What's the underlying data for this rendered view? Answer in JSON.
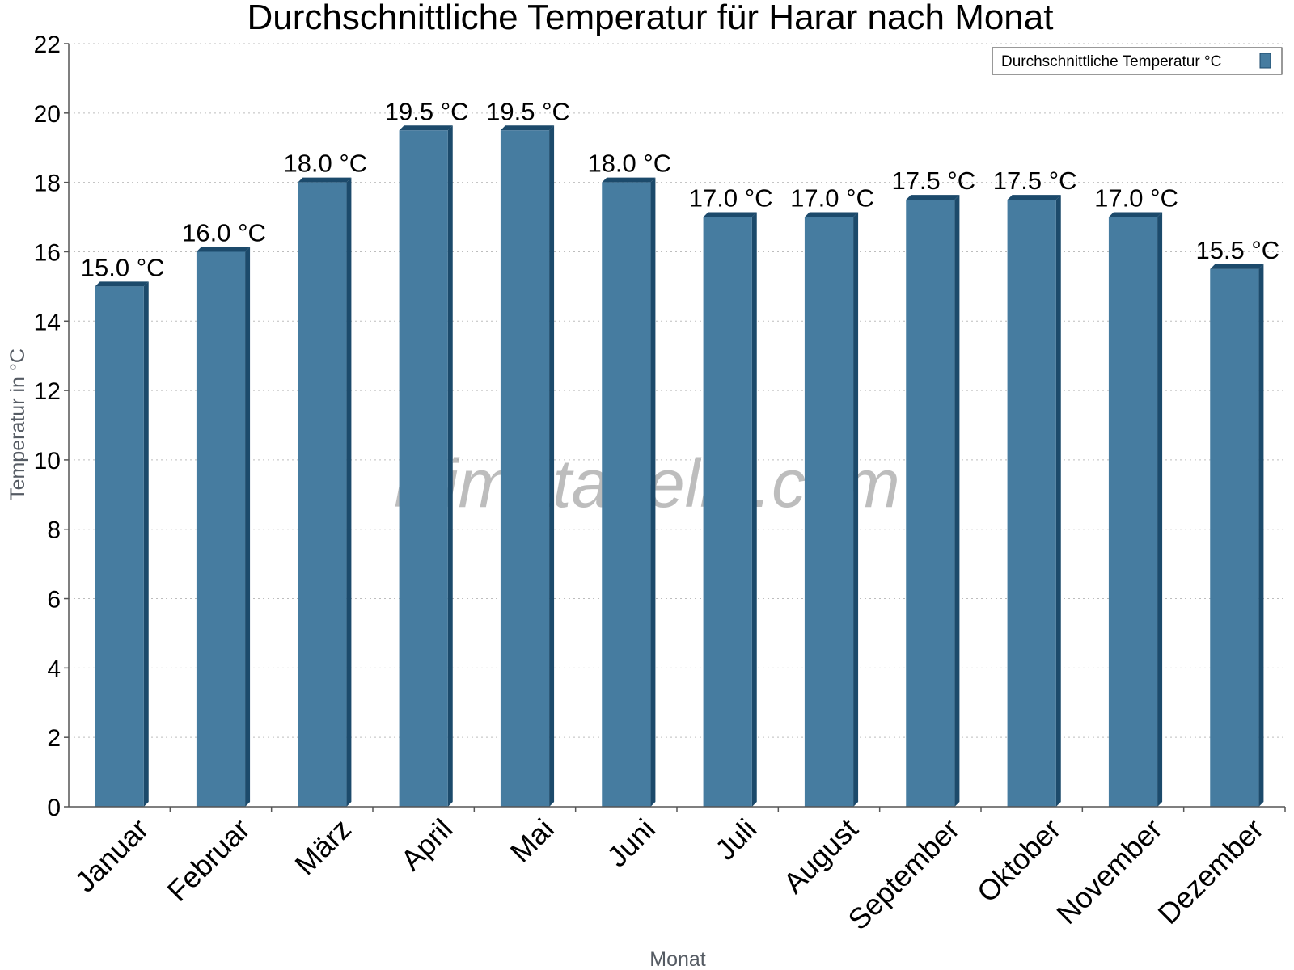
{
  "chart_data": {
    "type": "bar",
    "title": "Durchschnittliche Temperatur für Harar nach Monat",
    "xlabel": "Monat",
    "ylabel": "Temperatur in °C",
    "categories": [
      "Januar",
      "Februar",
      "März",
      "April",
      "Mai",
      "Juni",
      "Juli",
      "August",
      "September",
      "Oktober",
      "November",
      "Dezember"
    ],
    "series": [
      {
        "name": "Durchschnittliche Temperatur °C",
        "values": [
          15.0,
          16.0,
          18.0,
          19.5,
          19.5,
          18.0,
          17.0,
          17.0,
          17.5,
          17.5,
          17.0,
          15.5
        ],
        "data_labels": [
          "15.0 °C",
          "16.0 °C",
          "18.0 °C",
          "19.5 °C",
          "19.5 °C",
          "18.0 °C",
          "17.0 °C",
          "17.0 °C",
          "17.5 °C",
          "17.5 °C",
          "17.0 °C",
          "15.5 °C"
        ],
        "color": "#467ca0",
        "side_color": "#1c4a6b"
      }
    ],
    "ylim": [
      0,
      22
    ],
    "yticks": [
      "0",
      "2",
      "4",
      "6",
      "8",
      "10",
      "12",
      "14",
      "16",
      "18",
      "20",
      "22"
    ],
    "grid": true,
    "legend_position": "top-right"
  },
  "watermark": "klimatabelle.com"
}
